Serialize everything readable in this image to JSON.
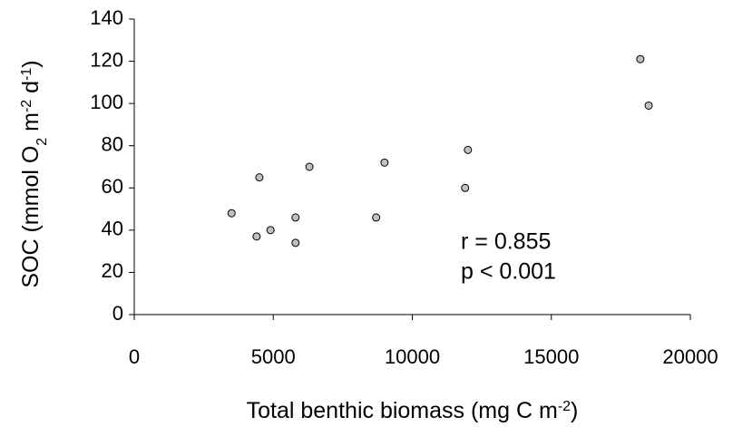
{
  "chart_data": {
    "type": "scatter",
    "x_label": [
      {
        "text": "Total benthic biomass (mg C m"
      },
      {
        "sup": "-2"
      },
      {
        "text": ")"
      }
    ],
    "y_label": [
      {
        "text": "SOC (mmol O"
      },
      {
        "sub": "2"
      },
      {
        "text": " m"
      },
      {
        "sup": "-2"
      },
      {
        "text": " d"
      },
      {
        "sup": "-1"
      },
      {
        "text": ")"
      }
    ],
    "annotations": [
      "r = 0.855",
      "p < 0.001"
    ],
    "x": [
      3500,
      4400,
      4500,
      4900,
      5800,
      5800,
      6300,
      8700,
      9000,
      11900,
      12000,
      18200,
      18500
    ],
    "values": [
      48,
      37,
      65,
      40,
      34,
      46,
      70,
      46,
      72,
      60,
      78,
      121,
      99
    ],
    "color": "#c0c0c0",
    "xlim": [
      0,
      20000
    ],
    "xticks": [
      0,
      5000,
      10000,
      15000,
      20000
    ],
    "ylim": [
      0,
      140
    ],
    "yticks": [
      0,
      20,
      40,
      60,
      80,
      100,
      120,
      140
    ]
  }
}
